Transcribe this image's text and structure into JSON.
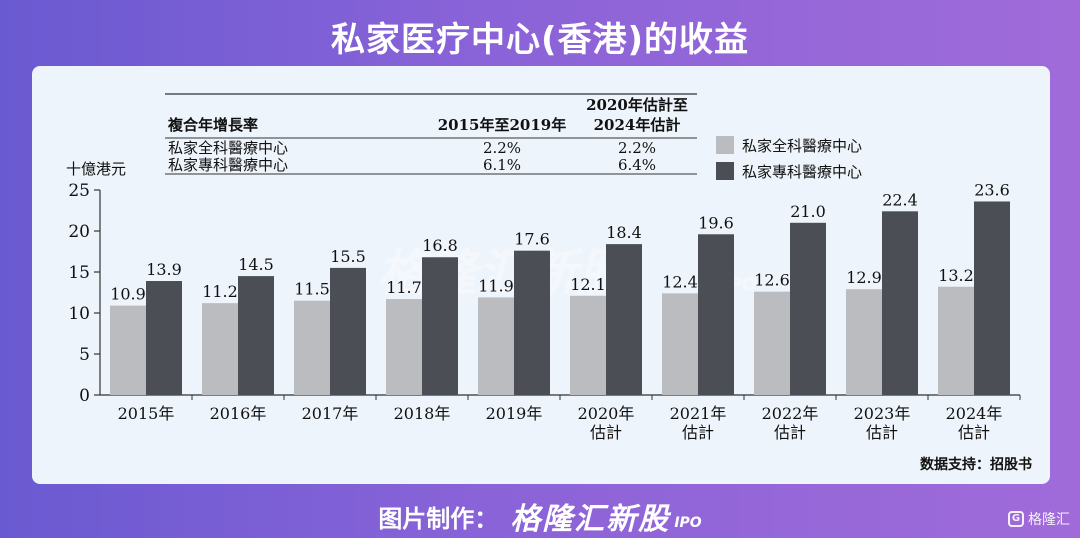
{
  "header": {
    "title": "私家医疗中心(香港)的收益"
  },
  "cagr_table": {
    "header": [
      "複合年增長率",
      "2015年至2019年",
      "2020年估計至",
      "2024年估計"
    ],
    "rows": [
      {
        "label": "私家全科醫療中心",
        "v1": "2.2%",
        "v2": "2.2%"
      },
      {
        "label": "私家專科醫療中心",
        "v1": "6.1%",
        "v2": "6.4%"
      }
    ]
  },
  "source": "数据支持：招股书",
  "watermark": {
    "main": "格隆汇新股",
    "sub": "IPO"
  },
  "footer": {
    "label": "图片制作：",
    "logo": "格隆汇新股",
    "ipo": "IPO"
  },
  "corner_brand": {
    "icon_text": "G",
    "text": "格隆汇"
  },
  "chart_data": {
    "type": "bar",
    "ylabel": "十億港元",
    "ylim": [
      0,
      25
    ],
    "yticks": [
      0,
      5,
      10,
      15,
      20,
      25
    ],
    "categories": [
      [
        "2015年"
      ],
      [
        "2016年"
      ],
      [
        "2017年"
      ],
      [
        "2018年"
      ],
      [
        "2019年"
      ],
      [
        "2020年",
        "估計"
      ],
      [
        "2021年",
        "估計"
      ],
      [
        "2022年",
        "估計"
      ],
      [
        "2023年",
        "估計"
      ],
      [
        "2024年",
        "估計"
      ]
    ],
    "series": [
      {
        "name": "私家全科醫療中心",
        "color": "#babcbf",
        "values": [
          10.9,
          11.2,
          11.5,
          11.7,
          11.9,
          12.1,
          12.4,
          12.6,
          12.9,
          13.2
        ]
      },
      {
        "name": "私家專科醫療中心",
        "color": "#4b4e54",
        "values": [
          13.9,
          14.5,
          15.5,
          16.8,
          17.6,
          18.4,
          19.6,
          21.0,
          22.4,
          23.6
        ]
      }
    ],
    "legend": "right, below table",
    "grid": false
  }
}
